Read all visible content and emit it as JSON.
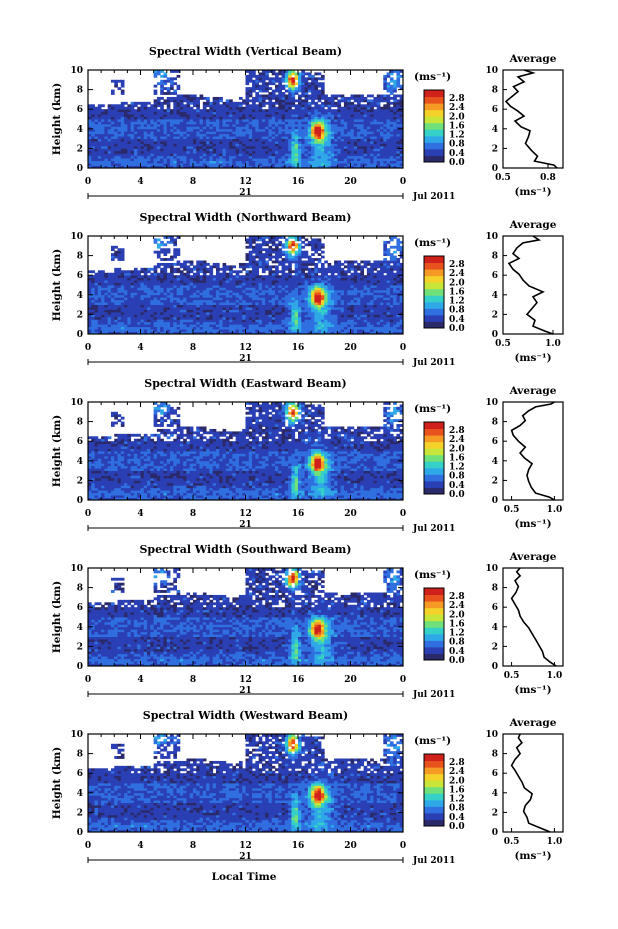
{
  "figure": {
    "xlabel_bottom": "Local Time",
    "date_label": "Jul 2011",
    "day_label": "21",
    "colorbar_unit": "(ms⁻¹)",
    "avg_title": "Average",
    "avg_xlabel": "(ms⁻¹)",
    "colorscale": [
      "#2a2a6a",
      "#2b3fb5",
      "#2f6fe0",
      "#2fa8e8",
      "#35d0c8",
      "#6fe07a",
      "#c8e63a",
      "#f5d22a",
      "#f59a24",
      "#e8521c",
      "#d0201c"
    ]
  },
  "chart_data": [
    {
      "type": "heatmap",
      "title": "Spectral Width (Vertical Beam)",
      "ylabel": "Height (km)",
      "xlim": [
        0,
        24
      ],
      "ylim": [
        0,
        10
      ],
      "xticks": [
        "0",
        "4",
        "8",
        "12",
        "16",
        "20",
        "0"
      ],
      "yticks": [
        "0",
        "2",
        "4",
        "6",
        "8",
        "10"
      ],
      "colorbar": {
        "ticks": [
          "0.0",
          "0.4",
          "0.8",
          "1.2",
          "1.6",
          "2.0",
          "2.4",
          "2.8"
        ],
        "range": [
          0,
          2.8
        ]
      },
      "average": {
        "xlim": [
          0.5,
          0.9
        ],
        "xticks": [
          "0.5",
          "0.8"
        ],
        "profile": [
          [
            0.86,
            0
          ],
          [
            0.84,
            0.3
          ],
          [
            0.71,
            0.7
          ],
          [
            0.73,
            1.2
          ],
          [
            0.69,
            1.8
          ],
          [
            0.65,
            2.5
          ],
          [
            0.67,
            3.2
          ],
          [
            0.68,
            3.8
          ],
          [
            0.62,
            4.2
          ],
          [
            0.58,
            4.8
          ],
          [
            0.64,
            5.3
          ],
          [
            0.6,
            5.8
          ],
          [
            0.55,
            6.3
          ],
          [
            0.52,
            6.8
          ],
          [
            0.56,
            7.3
          ],
          [
            0.6,
            7.8
          ],
          [
            0.57,
            8.3
          ],
          [
            0.64,
            8.8
          ],
          [
            0.6,
            9.3
          ],
          [
            0.7,
            9.7
          ],
          [
            0.64,
            10
          ]
        ]
      }
    },
    {
      "type": "heatmap",
      "title": "Spectral Width (Northward Beam)",
      "ylabel": "Height (km)",
      "xlim": [
        0,
        24
      ],
      "ylim": [
        0,
        10
      ],
      "xticks": [
        "0",
        "4",
        "8",
        "12",
        "16",
        "20",
        "0"
      ],
      "yticks": [
        "0",
        "2",
        "4",
        "6",
        "8",
        "10"
      ],
      "colorbar": {
        "ticks": [
          "0.0",
          "0.4",
          "0.8",
          "1.2",
          "1.6",
          "2.0",
          "2.4",
          "2.8"
        ],
        "range": [
          0,
          2.8
        ]
      },
      "average": {
        "xlim": [
          0.5,
          1.1
        ],
        "xticks": [
          "0.5",
          "1.0"
        ],
        "profile": [
          [
            1.0,
            0
          ],
          [
            0.92,
            0.3
          ],
          [
            0.8,
            0.8
          ],
          [
            0.82,
            1.4
          ],
          [
            0.74,
            2.0
          ],
          [
            0.79,
            2.6
          ],
          [
            0.84,
            3.2
          ],
          [
            0.8,
            3.8
          ],
          [
            0.9,
            4.3
          ],
          [
            0.76,
            4.9
          ],
          [
            0.7,
            5.5
          ],
          [
            0.66,
            6.1
          ],
          [
            0.6,
            6.6
          ],
          [
            0.56,
            7.2
          ],
          [
            0.66,
            7.7
          ],
          [
            0.6,
            8.2
          ],
          [
            0.64,
            8.8
          ],
          [
            0.7,
            9.3
          ],
          [
            0.86,
            9.6
          ],
          [
            0.8,
            10
          ]
        ]
      }
    },
    {
      "type": "heatmap",
      "title": "Spectral Width (Eastward Beam)",
      "ylabel": "Height (km)",
      "xlim": [
        0,
        24
      ],
      "ylim": [
        0,
        10
      ],
      "xticks": [
        "0",
        "4",
        "8",
        "12",
        "16",
        "20",
        "0"
      ],
      "yticks": [
        "0",
        "2",
        "4",
        "6",
        "8",
        "10"
      ],
      "colorbar": {
        "ticks": [
          "0.0",
          "0.4",
          "0.8",
          "1.2",
          "1.6",
          "2.0",
          "2.4",
          "2.8"
        ],
        "range": [
          0,
          2.8
        ]
      },
      "average": {
        "xlim": [
          0.4,
          1.1
        ],
        "xticks": [
          "0.5",
          "1.0"
        ],
        "profile": [
          [
            1.0,
            0
          ],
          [
            0.94,
            0.3
          ],
          [
            0.78,
            0.7
          ],
          [
            0.73,
            1.3
          ],
          [
            0.7,
            1.9
          ],
          [
            0.68,
            2.5
          ],
          [
            0.7,
            3.1
          ],
          [
            0.74,
            3.7
          ],
          [
            0.65,
            4.3
          ],
          [
            0.6,
            4.8
          ],
          [
            0.66,
            5.4
          ],
          [
            0.58,
            6.0
          ],
          [
            0.52,
            6.6
          ],
          [
            0.5,
            7.1
          ],
          [
            0.6,
            7.6
          ],
          [
            0.66,
            8.1
          ],
          [
            0.63,
            8.6
          ],
          [
            0.7,
            9.1
          ],
          [
            0.78,
            9.5
          ],
          [
            0.96,
            9.8
          ],
          [
            1.0,
            10
          ]
        ]
      }
    },
    {
      "type": "heatmap",
      "title": "Spectral Width (Southward Beam)",
      "ylabel": "Height (km)",
      "xlim": [
        0,
        24
      ],
      "ylim": [
        0,
        10
      ],
      "xticks": [
        "0",
        "4",
        "8",
        "12",
        "16",
        "20",
        "0"
      ],
      "yticks": [
        "0",
        "2",
        "4",
        "6",
        "8",
        "10"
      ],
      "colorbar": {
        "ticks": [
          "0.0",
          "0.4",
          "0.8",
          "1.2",
          "1.6",
          "2.0",
          "2.4",
          "2.8"
        ],
        "range": [
          0,
          2.8
        ]
      },
      "average": {
        "xlim": [
          0.4,
          1.1
        ],
        "xticks": [
          "0.5",
          "1.0"
        ],
        "profile": [
          [
            1.02,
            0
          ],
          [
            0.95,
            0.4
          ],
          [
            0.88,
            0.9
          ],
          [
            0.86,
            1.5
          ],
          [
            0.82,
            2.1
          ],
          [
            0.78,
            2.7
          ],
          [
            0.74,
            3.3
          ],
          [
            0.7,
            3.9
          ],
          [
            0.64,
            4.5
          ],
          [
            0.6,
            5.1
          ],
          [
            0.58,
            5.7
          ],
          [
            0.54,
            6.3
          ],
          [
            0.5,
            6.9
          ],
          [
            0.55,
            7.5
          ],
          [
            0.58,
            8.1
          ],
          [
            0.54,
            8.7
          ],
          [
            0.6,
            9.2
          ],
          [
            0.56,
            9.6
          ],
          [
            0.6,
            10
          ]
        ]
      }
    },
    {
      "type": "heatmap",
      "title": "Spectral Width (Westward Beam)",
      "ylabel": "Height (km)",
      "xlim": [
        0,
        24
      ],
      "ylim": [
        0,
        10
      ],
      "xticks": [
        "0",
        "4",
        "8",
        "12",
        "16",
        "20",
        "0"
      ],
      "yticks": [
        "0",
        "2",
        "4",
        "6",
        "8",
        "10"
      ],
      "colorbar": {
        "ticks": [
          "0.0",
          "0.4",
          "0.8",
          "1.2",
          "1.6",
          "2.0",
          "2.4",
          "2.8"
        ],
        "range": [
          0,
          2.8
        ]
      },
      "average": {
        "xlim": [
          0.4,
          1.1
        ],
        "xticks": [
          "0.5",
          "1.0"
        ],
        "profile": [
          [
            0.95,
            0
          ],
          [
            0.84,
            0.4
          ],
          [
            0.7,
            0.9
          ],
          [
            0.68,
            1.5
          ],
          [
            0.64,
            2.1
          ],
          [
            0.66,
            2.7
          ],
          [
            0.72,
            3.3
          ],
          [
            0.74,
            3.9
          ],
          [
            0.65,
            4.5
          ],
          [
            0.62,
            5.1
          ],
          [
            0.58,
            5.7
          ],
          [
            0.54,
            6.3
          ],
          [
            0.5,
            6.8
          ],
          [
            0.54,
            7.4
          ],
          [
            0.6,
            8.0
          ],
          [
            0.56,
            8.6
          ],
          [
            0.62,
            9.1
          ],
          [
            0.58,
            9.6
          ],
          [
            0.6,
            10
          ]
        ]
      }
    }
  ]
}
